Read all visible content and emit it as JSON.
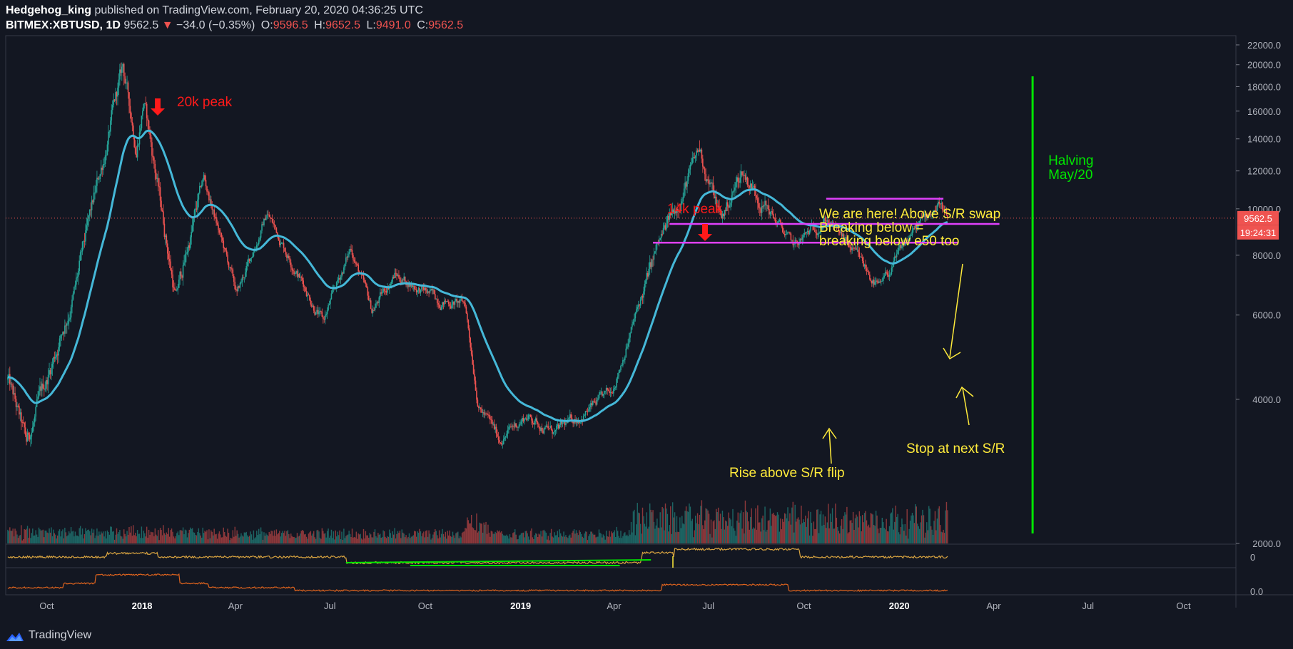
{
  "header": {
    "author": "Hedgehog_king",
    "published_text": "published on TradingView.com, February 20, 2020 04:36:25 UTC",
    "symbol": "BITMEX:XBTUSD, 1D",
    "last": "9562.5",
    "change": "−34.0 (−0.35%)",
    "o_label": "O:",
    "o_val": "9596.5",
    "h_label": "H:",
    "h_val": "9652.5",
    "l_label": "L:",
    "l_val": "9491.0",
    "c_label": "C:",
    "c_val": "9562.5"
  },
  "footer": {
    "brand": "TradingView"
  },
  "colors": {
    "background": "#131722",
    "up": "#26a69a",
    "down": "#ef5350",
    "ema": "#45b8d8",
    "sr_lines": "#e040fb",
    "annotation": "#ffeb3b",
    "peak": "#ff1a1a",
    "halving": "#00e600",
    "osc1": "#d9a441",
    "osc2": "#e0641e"
  },
  "chart_data": {
    "type": "candlestick",
    "scale": "log",
    "ylim": [
      2000,
      23000
    ],
    "y_ticks": [
      "22000.0",
      "20000.0",
      "18000.0",
      "16000.0",
      "14000.0",
      "12000.0",
      "10000.0",
      "8000.0",
      "6000.0",
      "4000.0",
      "2000.0"
    ],
    "x_ticks": [
      "Oct",
      "2018",
      "Apr",
      "Jul",
      "Oct",
      "2019",
      "Apr",
      "Jul",
      "Oct",
      "2020",
      "Apr",
      "Jul",
      "Oct"
    ],
    "x_ticks_bold": [
      "2018",
      "2019",
      "2020"
    ],
    "price_keypoints": [
      [
        "2017-08-28",
        4400
      ],
      [
        "2017-09-15",
        3200
      ],
      [
        "2017-10-10",
        4800
      ],
      [
        "2017-11-01",
        6800
      ],
      [
        "2017-12-17",
        19600
      ],
      [
        "2017-12-30",
        13500
      ],
      [
        "2018-01-06",
        17000
      ],
      [
        "2018-02-06",
        6500
      ],
      [
        "2018-03-05",
        11500
      ],
      [
        "2018-04-06",
        6600
      ],
      [
        "2018-05-05",
        9800
      ],
      [
        "2018-06-28",
        5800
      ],
      [
        "2018-07-25",
        8300
      ],
      [
        "2018-08-14",
        6100
      ],
      [
        "2018-09-05",
        7300
      ],
      [
        "2018-10-15",
        6500
      ],
      [
        "2018-11-12",
        6300
      ],
      [
        "2018-11-25",
        3900
      ],
      [
        "2018-12-15",
        3300
      ],
      [
        "2019-01-10",
        3700
      ],
      [
        "2019-02-07",
        3400
      ],
      [
        "2019-04-01",
        4100
      ],
      [
        "2019-05-15",
        8100
      ],
      [
        "2019-06-26",
        13200
      ],
      [
        "2019-07-17",
        9500
      ],
      [
        "2019-08-06",
        12000
      ],
      [
        "2019-09-25",
        8300
      ],
      [
        "2019-10-26",
        9600
      ],
      [
        "2019-12-17",
        6800
      ],
      [
        "2020-01-15",
        8800
      ],
      [
        "2020-02-13",
        10400
      ],
      [
        "2020-02-20",
        9562.5
      ]
    ],
    "ema_label": "e50",
    "sr_levels": [
      10500,
      9300,
      8500
    ],
    "current_price_label": "9562.5",
    "countdown_label": "19:24:31",
    "annotations": {
      "peak_20k": "20k peak",
      "peak_14k": "14k peak",
      "we_are_here": [
        "We are here! Above S/R swap",
        "Breaking below =",
        "breaking below e50 too"
      ],
      "stop_next": "Stop at next S/R",
      "rise_above": "Rise above S/R flip",
      "halving": [
        "Halving",
        "May/20"
      ]
    },
    "osc_ticks": [
      "0",
      "0.0"
    ]
  }
}
